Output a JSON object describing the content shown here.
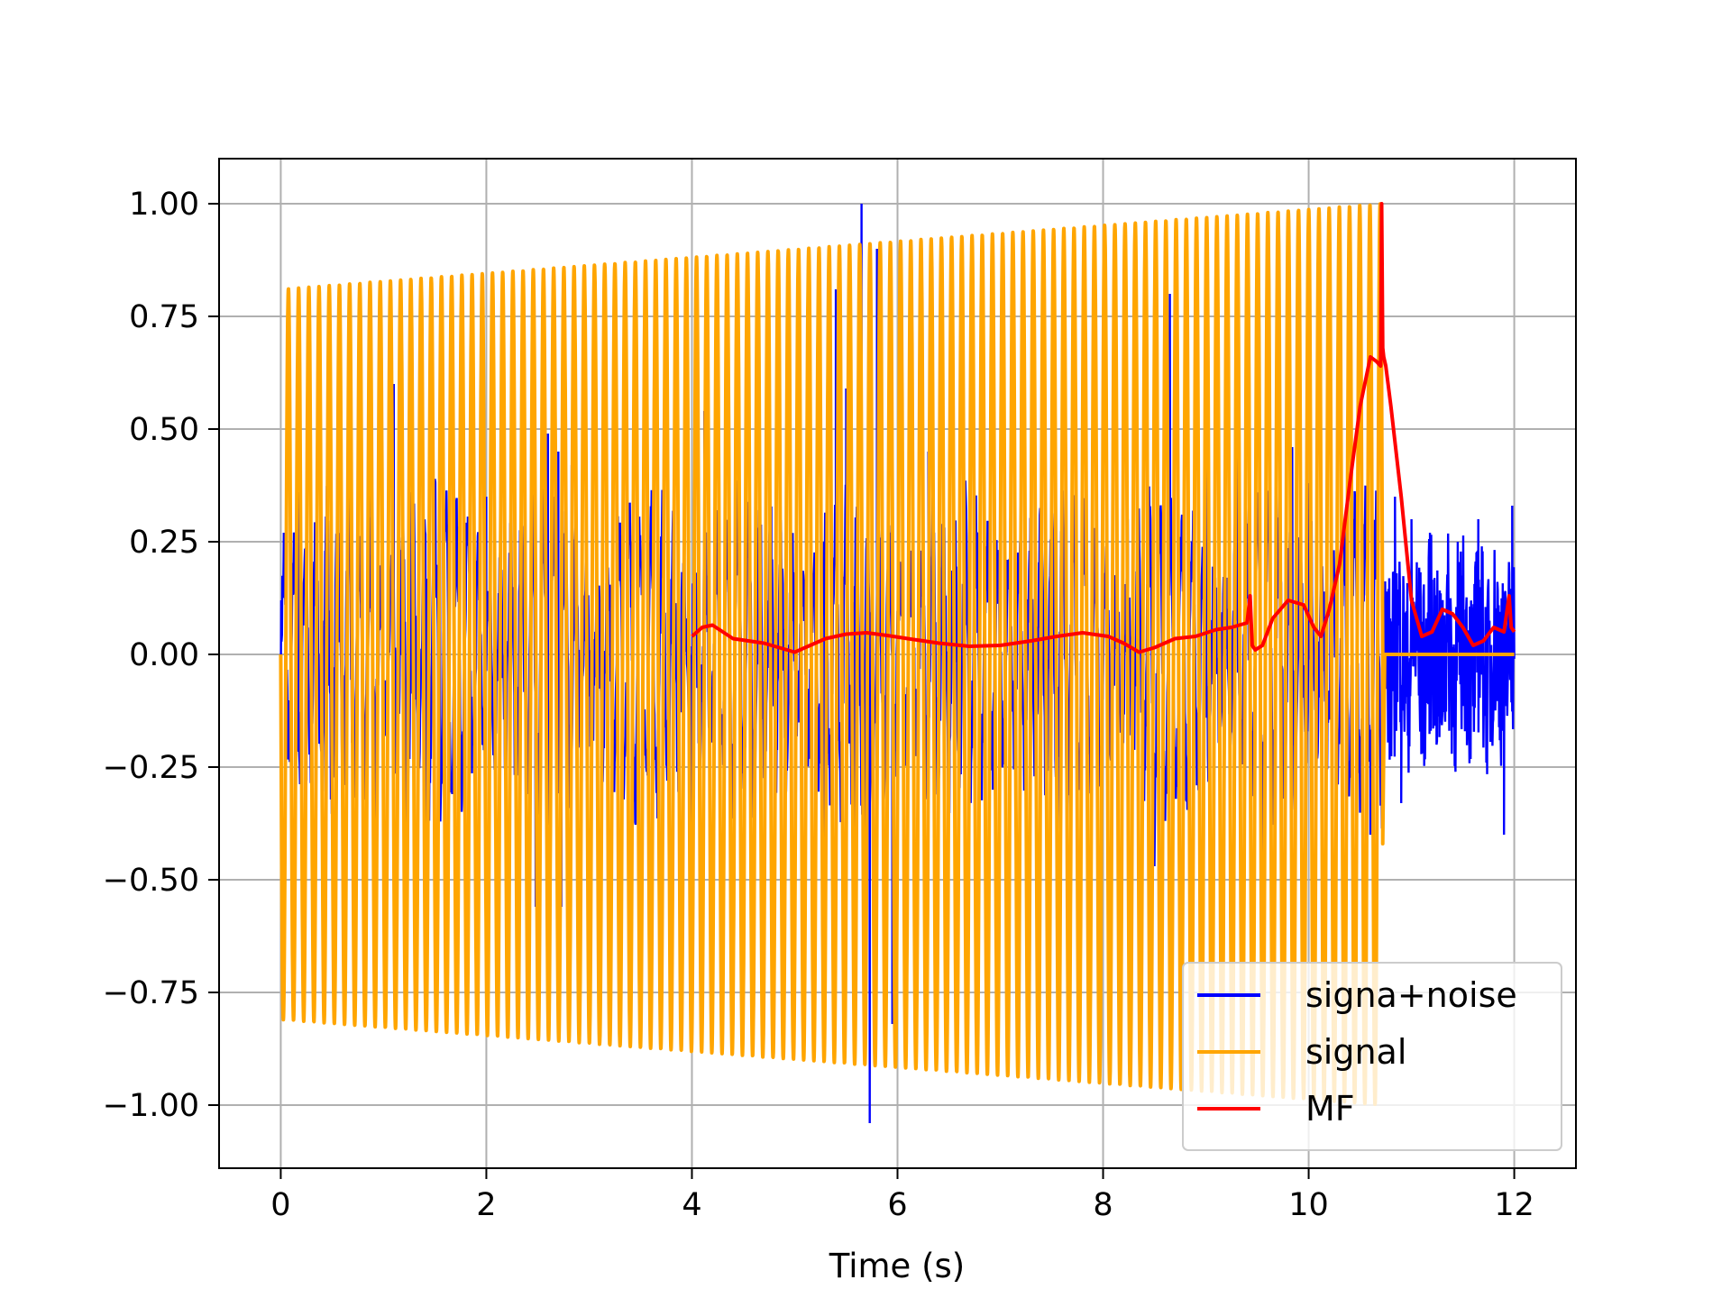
{
  "chart_data": {
    "type": "line",
    "title": "",
    "xlabel": "Time (s)",
    "ylabel": "",
    "xlim": [
      -0.6,
      12.6
    ],
    "ylim": [
      -1.14,
      1.1
    ],
    "grid": true,
    "legend_position": "lower-right",
    "xticks": [
      0,
      2,
      4,
      6,
      8,
      10,
      12
    ],
    "xtick_labels": [
      "0",
      "2",
      "4",
      "6",
      "8",
      "10",
      "12"
    ],
    "yticks": [
      1.0,
      0.75,
      0.5,
      0.25,
      0.0,
      -0.25,
      -0.5,
      -0.75,
      -1.0
    ],
    "ytick_labels": [
      "1.00",
      "0.75",
      "0.50",
      "0.25",
      "0.00",
      "−0.25",
      "−0.50",
      "−0.75",
      "−1.00"
    ],
    "series": [
      {
        "name": "signa+noise",
        "color": "#0000ff",
        "description_values": "noisy chirp, t 0-12 s",
        "spikes": [
          [
            0.03,
            0.27
          ],
          [
            0.17,
            0.36
          ],
          [
            0.25,
            -0.28
          ],
          [
            0.55,
            0.41
          ],
          [
            0.78,
            0.11
          ],
          [
            0.86,
            0.66
          ],
          [
            0.92,
            -0.72
          ],
          [
            1.1,
            0.6
          ],
          [
            1.22,
            -0.48
          ],
          [
            1.27,
            0.36
          ],
          [
            1.41,
            -0.48
          ],
          [
            1.55,
            0.38
          ],
          [
            1.63,
            -0.47
          ],
          [
            2.0,
            0.35
          ],
          [
            2.48,
            -0.56
          ],
          [
            2.6,
            0.49
          ],
          [
            2.7,
            0.45
          ],
          [
            2.73,
            -0.56
          ],
          [
            2.83,
            0.42
          ],
          [
            4.0,
            -0.42
          ],
          [
            4.12,
            0.54
          ],
          [
            4.4,
            -0.32
          ],
          [
            5.29,
            -0.86
          ],
          [
            5.4,
            0.81
          ],
          [
            5.5,
            0.59
          ],
          [
            5.58,
            -0.69
          ],
          [
            5.65,
            1.0
          ],
          [
            5.68,
            -0.74
          ],
          [
            5.73,
            -1.04
          ],
          [
            5.8,
            0.9
          ],
          [
            5.95,
            -0.82
          ],
          [
            6.3,
            0.45
          ],
          [
            7.5,
            0.38
          ],
          [
            8.5,
            -0.47
          ],
          [
            8.65,
            0.8
          ],
          [
            9.0,
            0.48
          ],
          [
            9.3,
            0.5
          ],
          [
            9.55,
            -0.52
          ],
          [
            9.84,
            0.46
          ],
          [
            10.0,
            0.38
          ],
          [
            10.6,
            -0.4
          ],
          [
            10.84,
            0.35
          ],
          [
            10.9,
            -0.33
          ],
          [
            11.0,
            0.3
          ],
          [
            11.18,
            0.27
          ],
          [
            11.45,
            0.25
          ],
          [
            11.65,
            0.3
          ],
          [
            11.9,
            -0.4
          ],
          [
            11.98,
            0.33
          ]
        ]
      },
      {
        "name": "signal",
        "color": "#ffa500",
        "envelope_start": 0.81,
        "envelope_end": 1.0,
        "t_end": 10.72,
        "cycles": 108
      },
      {
        "name": "MF",
        "color": "#ff0000",
        "x": [
          4.0,
          4.1,
          4.2,
          4.3,
          4.4,
          4.55,
          4.7,
          4.85,
          5.0,
          5.15,
          5.3,
          5.5,
          5.7,
          5.9,
          6.1,
          6.4,
          6.7,
          7.0,
          7.3,
          7.55,
          7.8,
          8.05,
          8.2,
          8.35,
          8.5,
          8.7,
          8.9,
          9.1,
          9.25,
          9.4,
          9.43,
          9.45,
          9.48,
          9.55,
          9.65,
          9.8,
          9.95,
          10.05,
          10.12,
          10.2,
          10.3,
          10.4,
          10.5,
          10.6,
          10.66,
          10.7,
          10.71,
          10.72,
          10.73,
          10.75,
          10.8,
          10.9,
          11.0,
          11.1,
          11.2,
          11.3,
          11.4,
          11.5,
          11.6,
          11.7,
          11.8,
          11.9,
          11.95,
          11.97,
          12.0
        ],
        "y": [
          0.04,
          0.06,
          0.065,
          0.05,
          0.035,
          0.03,
          0.025,
          0.015,
          0.005,
          0.02,
          0.035,
          0.045,
          0.048,
          0.042,
          0.035,
          0.025,
          0.018,
          0.02,
          0.03,
          0.04,
          0.048,
          0.04,
          0.025,
          0.005,
          0.015,
          0.035,
          0.04,
          0.055,
          0.06,
          0.07,
          0.13,
          0.02,
          0.01,
          0.02,
          0.08,
          0.12,
          0.11,
          0.06,
          0.04,
          0.1,
          0.2,
          0.38,
          0.55,
          0.66,
          0.65,
          0.64,
          1.0,
          0.68,
          0.66,
          0.64,
          0.55,
          0.35,
          0.12,
          0.04,
          0.05,
          0.1,
          0.09,
          0.06,
          0.02,
          0.03,
          0.06,
          0.05,
          0.13,
          0.06,
          0.05
        ]
      }
    ]
  }
}
